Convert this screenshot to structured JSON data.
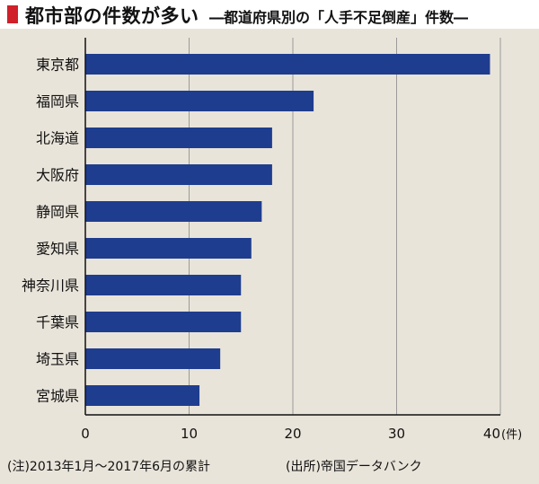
{
  "header": {
    "title": "都市部の件数が多い",
    "subtitle": "―都道府県別の「人手不足倒産」件数―"
  },
  "footer": {
    "note": "(注)2013年1月～2017年6月の累計",
    "source": "(出所)帝国データバンク"
  },
  "colors": {
    "bar": "#1f3d8f",
    "accent": "#d0202a",
    "background": "#e9e4da",
    "grid": "#9a9a9a"
  },
  "chart_data": {
    "type": "bar",
    "orientation": "horizontal",
    "categories": [
      "東京都",
      "福岡県",
      "北海道",
      "大阪府",
      "静岡県",
      "愛知県",
      "神奈川県",
      "千葉県",
      "埼玉県",
      "宮城県"
    ],
    "values": [
      39,
      22,
      18,
      18,
      17,
      16,
      15,
      15,
      13,
      11
    ],
    "xlim": [
      0,
      40
    ],
    "xticks": [
      "0",
      "10",
      "20",
      "30",
      "40"
    ],
    "xunit": "(件)",
    "grid": true
  }
}
